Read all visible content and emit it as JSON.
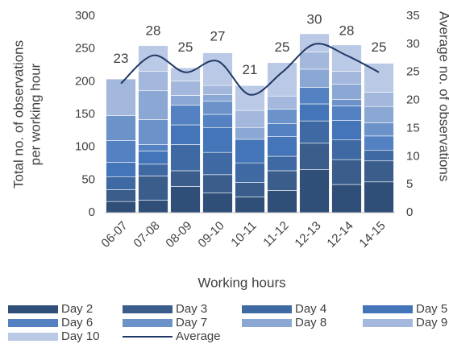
{
  "chart_data": {
    "type": "bar",
    "stacked": true,
    "ylabel": [
      "Total no. of observations",
      "per working hour"
    ],
    "y2label": "Average no. of observations",
    "xlabel": "Working hours",
    "categories": [
      "06-07",
      "07-08",
      "08-09",
      "09-10",
      "10-11",
      "11-12",
      "12-13",
      "12-14",
      "14-15"
    ],
    "series": [
      {
        "name": "Day 2",
        "color": "#2f4e78",
        "values": [
          17,
          19,
          40,
          30,
          24,
          34,
          66,
          43,
          47
        ]
      },
      {
        "name": "Day 3",
        "color": "#3a5d8c",
        "values": [
          18,
          37,
          24,
          28,
          22,
          30,
          40,
          38,
          32
        ]
      },
      {
        "name": "Day 4",
        "color": "#3e69a3",
        "values": [
          20,
          18,
          40,
          34,
          30,
          22,
          34,
          30,
          16
        ]
      },
      {
        "name": "Day 5",
        "color": "#4575b9",
        "values": [
          22,
          20,
          30,
          38,
          36,
          30,
          26,
          30,
          0
        ]
      },
      {
        "name": "Day 6",
        "color": "#5381c1",
        "values": [
          33,
          10,
          30,
          20,
          0,
          20,
          25,
          22,
          22
        ]
      },
      {
        "name": "Day 7",
        "color": "#6b93c9",
        "values": [
          38,
          38,
          0,
          20,
          0,
          22,
          0,
          10,
          20
        ]
      },
      {
        "name": "Day 8",
        "color": "#8ba7d3",
        "values": [
          0,
          44,
          15,
          10,
          18,
          0,
          28,
          23,
          25
        ]
      },
      {
        "name": "Day 9",
        "color": "#a3b8dc",
        "values": [
          56,
          30,
          22,
          14,
          26,
          20,
          26,
          20,
          22
        ]
      },
      {
        "name": "Day 10",
        "color": "#bac9e6",
        "values": [
          0,
          39,
          20,
          50,
          38,
          51,
          28,
          40,
          44
        ]
      },
      {
        "name": "Average",
        "type": "line",
        "axis": "y2",
        "color": "#203864",
        "values": [
          23,
          28,
          25,
          27,
          21,
          25,
          30,
          28,
          25
        ]
      }
    ],
    "ylim": [
      0,
      300
    ],
    "yticks": [
      0,
      50,
      100,
      150,
      200,
      250,
      300
    ],
    "y2lim": [
      0,
      35
    ],
    "y2ticks": [
      0,
      5,
      10,
      15,
      20,
      25,
      30,
      35
    ],
    "grid": false,
    "legend": "bottom"
  }
}
